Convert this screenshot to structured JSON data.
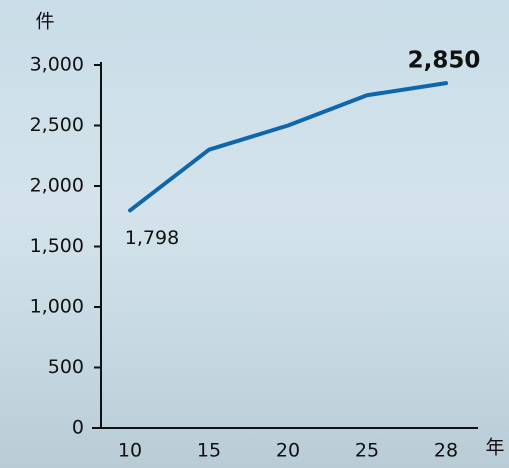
{
  "chart_data": {
    "type": "line",
    "y_unit": "件",
    "x_unit": "年",
    "categories": [
      "10",
      "15",
      "20",
      "25",
      "28"
    ],
    "series": [
      {
        "color": "#0f66aa",
        "values": [
          1798,
          2300,
          2500,
          2750,
          2850
        ],
        "value_labels": [
          "1,798",
          null,
          null,
          null,
          "2,850"
        ]
      }
    ],
    "ylim": [
      0,
      3000
    ],
    "yticks": [
      0,
      500,
      {
        "value": 1000,
        "label": "1,000"
      },
      {
        "value": 1500,
        "label": "1,500"
      },
      {
        "value": 2000,
        "label": "2,000"
      },
      {
        "value": 2500,
        "label": "2,500"
      },
      {
        "value": 3000,
        "label": "3,000"
      }
    ],
    "grid": false
  }
}
